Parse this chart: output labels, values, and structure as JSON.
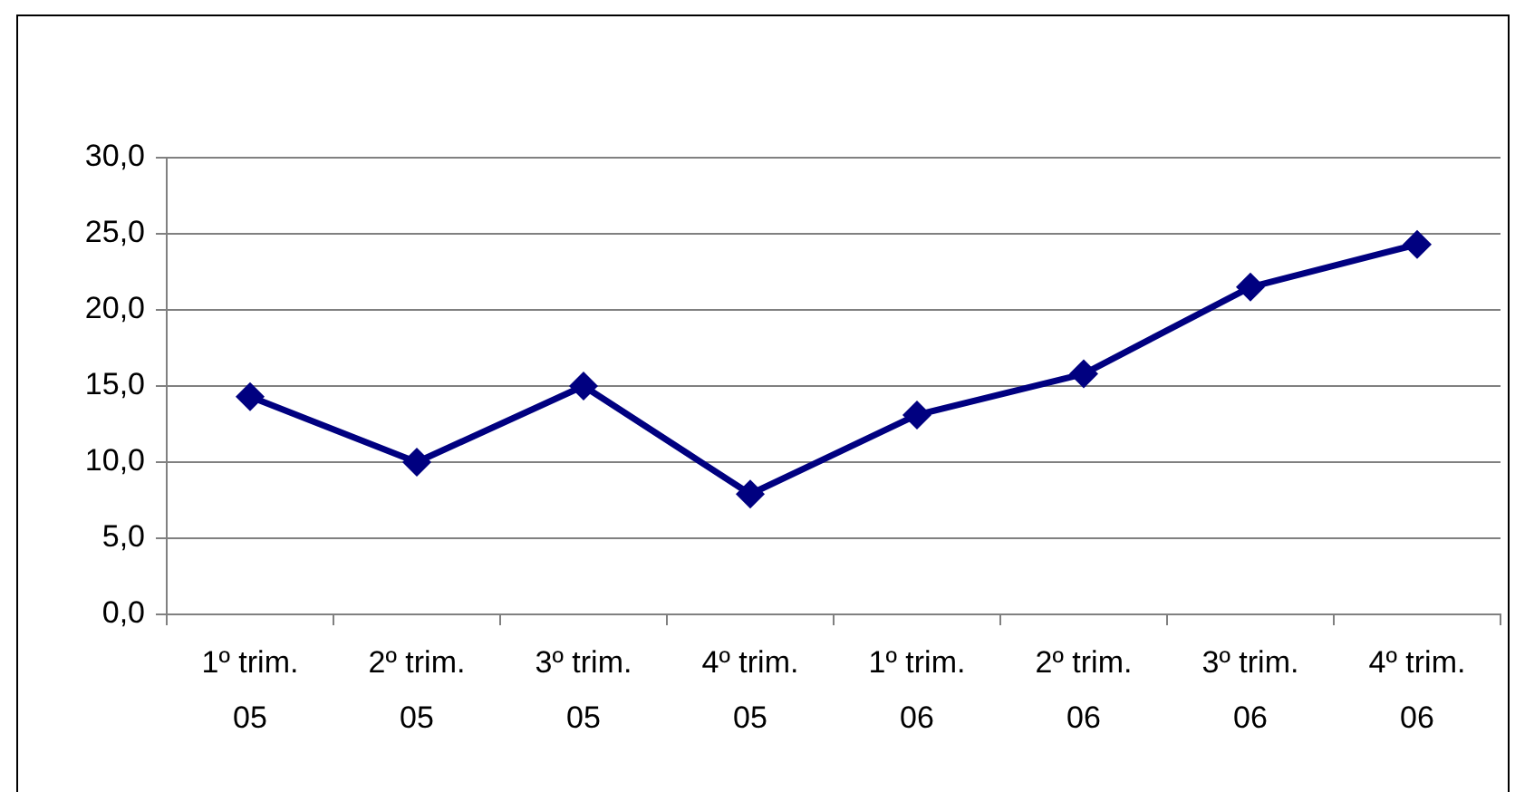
{
  "chart_data": {
    "type": "line",
    "categories": [
      "1º trim. 05",
      "2º trim. 05",
      "3º trim. 05",
      "4º trim. 05",
      "1º trim. 06",
      "2º trim. 06",
      "3º trim. 06",
      "4º trim. 06"
    ],
    "series": [
      {
        "color": "#000080",
        "values": [
          14.3,
          10.0,
          15.0,
          7.9,
          13.1,
          15.8,
          21.5,
          24.3
        ]
      }
    ],
    "ylim": [
      0,
      30
    ],
    "yticks": [
      {
        "value": 0,
        "label": "0,0"
      },
      {
        "value": 5,
        "label": "5,0"
      },
      {
        "value": 10,
        "label": "10,0"
      },
      {
        "value": 15,
        "label": "15,0"
      },
      {
        "value": 20,
        "label": "20,0"
      },
      {
        "value": 25,
        "label": "25,0"
      },
      {
        "value": 30,
        "label": "30,0"
      }
    ],
    "grid": "y",
    "legend": false,
    "marker": "diamond",
    "line_style": "solid"
  }
}
